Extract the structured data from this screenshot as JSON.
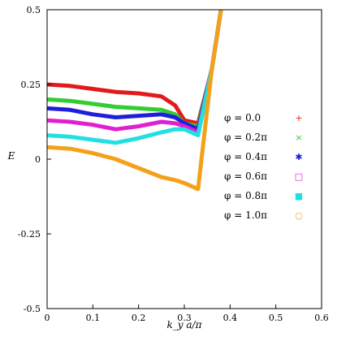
{
  "chart_data": {
    "type": "scatter",
    "title": "",
    "xlabel": "k_y a/π",
    "ylabel": "E",
    "xlim": [
      0,
      0.6
    ],
    "ylim": [
      -0.5,
      0.5
    ],
    "x_ticks": [
      {
        "value": 0,
        "label": "0"
      },
      {
        "value": 0.1,
        "label": "0.1"
      },
      {
        "value": 0.2,
        "label": "0.2"
      },
      {
        "value": 0.3,
        "label": "0.3"
      },
      {
        "value": 0.4,
        "label": "0.4"
      },
      {
        "value": 0.5,
        "label": "0.5"
      },
      {
        "value": 0.6,
        "label": "0.6"
      }
    ],
    "y_ticks": [
      {
        "value": -0.5,
        "label": "-0.5"
      },
      {
        "value": -0.25,
        "label": "-0.25"
      },
      {
        "value": 0,
        "label": "0"
      },
      {
        "value": 0.25,
        "label": "0.25"
      },
      {
        "value": 0.5,
        "label": "0.5"
      }
    ],
    "grid": false,
    "legend_position": "right-center",
    "series": [
      {
        "name": "φ = 0.0",
        "marker": "+",
        "color": "#e31a1c",
        "band": {
          "x": [
            0,
            0.05,
            0.1,
            0.15,
            0.2,
            0.25,
            0.28,
            0.3,
            0.33,
            0.36,
            0.38
          ],
          "y": [
            0.25,
            0.245,
            0.235,
            0.225,
            0.22,
            0.21,
            0.18,
            0.13,
            0.12,
            0.3,
            0.5
          ]
        }
      },
      {
        "name": "φ = 0.2π",
        "marker": "×",
        "color": "#33cc33",
        "band": {
          "x": [
            0,
            0.05,
            0.1,
            0.15,
            0.2,
            0.25,
            0.28,
            0.3,
            0.33,
            0.36,
            0.38
          ],
          "y": [
            0.2,
            0.195,
            0.185,
            0.175,
            0.17,
            0.165,
            0.15,
            0.12,
            0.11,
            0.3,
            0.5
          ]
        }
      },
      {
        "name": "φ = 0.4π",
        "marker": "✱",
        "color": "#1f1fd9",
        "band": {
          "x": [
            0,
            0.05,
            0.1,
            0.15,
            0.2,
            0.25,
            0.28,
            0.3,
            0.33,
            0.36,
            0.38
          ],
          "y": [
            0.17,
            0.165,
            0.15,
            0.14,
            0.145,
            0.15,
            0.14,
            0.12,
            0.1,
            0.3,
            0.5
          ]
        }
      },
      {
        "name": "φ = 0.6π",
        "marker": "□",
        "color": "#e020d0",
        "band": {
          "x": [
            0,
            0.05,
            0.1,
            0.15,
            0.2,
            0.25,
            0.28,
            0.3,
            0.33,
            0.36,
            0.38
          ],
          "y": [
            0.13,
            0.125,
            0.115,
            0.1,
            0.11,
            0.125,
            0.12,
            0.11,
            0.09,
            0.3,
            0.5
          ]
        }
      },
      {
        "name": "φ = 0.8π",
        "marker": "■",
        "color": "#20e0e0",
        "band": {
          "x": [
            0,
            0.05,
            0.1,
            0.15,
            0.2,
            0.25,
            0.28,
            0.3,
            0.33,
            0.36,
            0.38
          ],
          "y": [
            0.08,
            0.075,
            0.065,
            0.055,
            0.07,
            0.09,
            0.1,
            0.1,
            0.08,
            0.3,
            0.5
          ]
        }
      },
      {
        "name": "φ = 1.0π",
        "marker": "○",
        "color": "#f4a11a",
        "band": {
          "x": [
            0,
            0.05,
            0.1,
            0.15,
            0.2,
            0.25,
            0.28,
            0.3,
            0.33,
            0.36,
            0.38
          ],
          "y": [
            0.04,
            0.035,
            0.02,
            0.0,
            -0.03,
            -0.06,
            -0.07,
            -0.08,
            -0.1,
            0.3,
            0.5
          ]
        }
      }
    ]
  }
}
